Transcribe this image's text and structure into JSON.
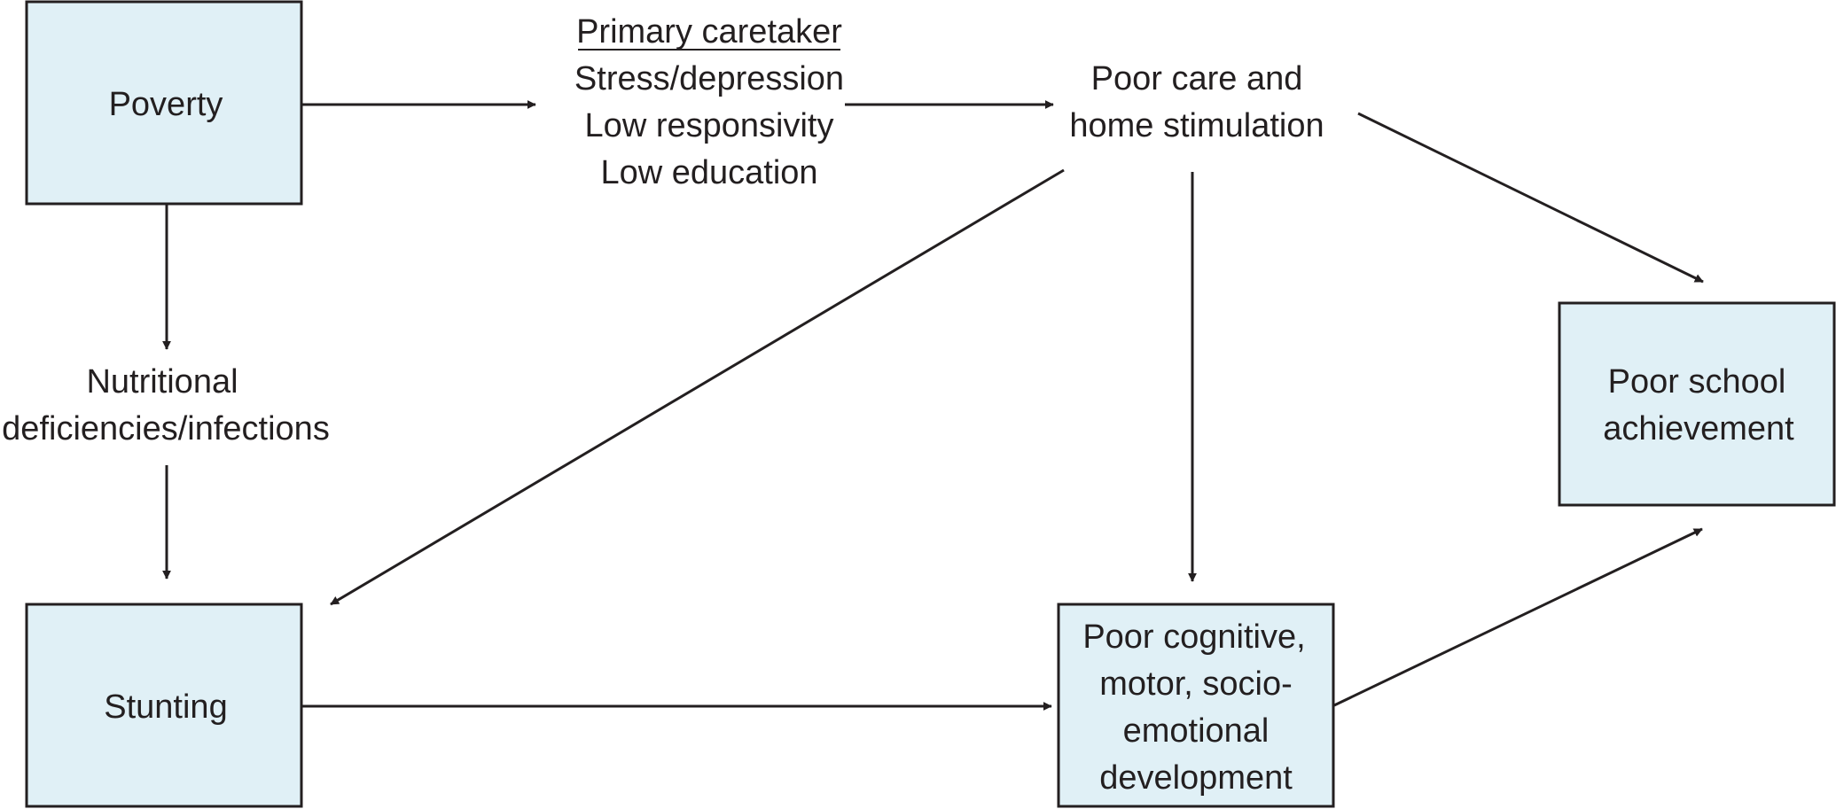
{
  "nodes": {
    "poverty": {
      "label": "Poverty"
    },
    "caretaker": {
      "heading": "Primary caretaker",
      "lines": [
        "Stress/depression",
        "Low responsivity",
        "Low education"
      ]
    },
    "poor_care": {
      "lines": [
        "Poor care and",
        "home stimulation"
      ]
    },
    "nutrition": {
      "lines": [
        "Nutritional",
        "deficiencies/infections"
      ]
    },
    "stunting": {
      "label": "Stunting"
    },
    "development": {
      "lines": [
        "Poor cognitive,",
        "motor, socio-",
        "emotional",
        "development"
      ]
    },
    "school": {
      "lines": [
        "Poor school",
        "achievement"
      ]
    }
  },
  "edges": [
    {
      "from": "poverty",
      "to": "caretaker"
    },
    {
      "from": "caretaker",
      "to": "poor_care"
    },
    {
      "from": "poverty",
      "to": "nutrition"
    },
    {
      "from": "nutrition",
      "to": "stunting"
    },
    {
      "from": "poor_care",
      "to": "stunting"
    },
    {
      "from": "poor_care",
      "to": "development"
    },
    {
      "from": "poor_care",
      "to": "school"
    },
    {
      "from": "stunting",
      "to": "development"
    },
    {
      "from": "development",
      "to": "school"
    }
  ],
  "colors": {
    "box_fill": "#e0f0f6",
    "stroke": "#231f20",
    "text": "#231f20"
  }
}
